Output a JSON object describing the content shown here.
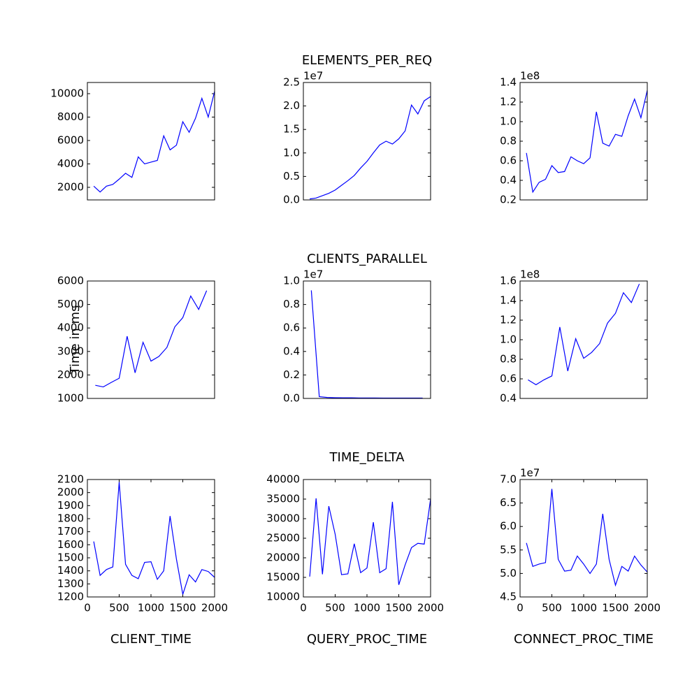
{
  "chart_data": [
    {
      "type": "line",
      "x": [
        100,
        200,
        300,
        400,
        500,
        600,
        700,
        800,
        900,
        1000,
        1100,
        1200,
        1300,
        1400,
        1500,
        1600,
        1700,
        1800,
        1900,
        2000
      ],
      "values": [
        2100,
        1600,
        2100,
        2250,
        2700,
        3200,
        2850,
        4600,
        4000,
        4150,
        4300,
        6400,
        5200,
        5600,
        7600,
        6700,
        7900,
        9600,
        8000,
        10200
      ],
      "color": "#0000ff",
      "xlim": [
        0,
        2000
      ],
      "ylim": [
        925,
        10955
      ],
      "yticks": [
        2000,
        4000,
        6000,
        8000,
        10000
      ]
    },
    {
      "type": "line",
      "title": "ELEMENTS_PER_REQ",
      "x": [
        100,
        200,
        300,
        400,
        500,
        600,
        700,
        800,
        900,
        1000,
        1100,
        1200,
        1300,
        1400,
        1500,
        1600,
        1700,
        1800,
        1900,
        2000
      ],
      "values": [
        0.02,
        0.04,
        0.09,
        0.14,
        0.21,
        0.31,
        0.41,
        0.52,
        0.68,
        0.82,
        1.0,
        1.17,
        1.25,
        1.19,
        1.3,
        1.47,
        2.02,
        1.83,
        2.11,
        2.2
      ],
      "color": "#0000ff",
      "xlim": [
        0,
        2000
      ],
      "ylim": [
        0,
        2.5
      ],
      "y_offset_label": "1e7",
      "yticks": [
        {
          "value": 0,
          "label": "0.0"
        },
        {
          "value": 0.5,
          "label": "0.5"
        },
        {
          "value": 1,
          "label": "1.0"
        },
        {
          "value": 1.5,
          "label": "1.5"
        },
        {
          "value": 2,
          "label": "2.0"
        },
        {
          "value": 2.5,
          "label": "2.5"
        }
      ]
    },
    {
      "type": "line",
      "x": [
        100,
        200,
        300,
        400,
        500,
        600,
        700,
        800,
        900,
        1000,
        1100,
        1200,
        1300,
        1400,
        1500,
        1600,
        1700,
        1800,
        1900,
        2000
      ],
      "values": [
        0.68,
        0.28,
        0.38,
        0.41,
        0.55,
        0.48,
        0.49,
        0.64,
        0.6,
        0.57,
        0.63,
        1.1,
        0.78,
        0.75,
        0.87,
        0.85,
        1.06,
        1.23,
        1.04,
        1.32
      ],
      "color": "#0000ff",
      "xlim": [
        0,
        2000
      ],
      "ylim": [
        0.2,
        1.4
      ],
      "y_offset_label": "1e8",
      "yticks": [
        {
          "value": 0.2,
          "label": "0.2"
        },
        {
          "value": 0.4,
          "label": "0.4"
        },
        {
          "value": 0.6,
          "label": "0.6"
        },
        {
          "value": 0.8,
          "label": "0.8"
        },
        {
          "value": 1,
          "label": "1.0"
        },
        {
          "value": 1.2,
          "label": "1.2"
        },
        {
          "value": 1.4,
          "label": "1.4"
        }
      ]
    },
    {
      "type": "line",
      "ylabel": "Time in ms",
      "x": [
        125,
        250,
        375,
        500,
        625,
        750,
        875,
        1000,
        1125,
        1250,
        1375,
        1500,
        1625,
        1750,
        1875
      ],
      "values": [
        1560,
        1490,
        1680,
        1860,
        3650,
        2090,
        3390,
        2590,
        2790,
        3170,
        4050,
        4440,
        5360,
        4790,
        5590
      ],
      "color": "#0000ff",
      "xlim": [
        0,
        2000
      ],
      "ylim": [
        1000,
        6000
      ],
      "yticks": [
        1000,
        2000,
        3000,
        4000,
        5000,
        6000
      ]
    },
    {
      "type": "line",
      "title": "CLIENTS_PARALLEL",
      "x": [
        125,
        250,
        375,
        500,
        625,
        750,
        875,
        1000,
        1125,
        1250,
        1375,
        1500,
        1625,
        1750,
        1875
      ],
      "values": [
        0.92,
        0.015,
        0.008,
        0.006,
        0.005,
        0.005,
        0.004,
        0.004,
        0.004,
        0.003,
        0.003,
        0.003,
        0.003,
        0.003,
        0.003
      ],
      "color": "#0000ff",
      "xlim": [
        0,
        2000
      ],
      "ylim": [
        0,
        1
      ],
      "y_offset_label": "1e7",
      "yticks": [
        {
          "value": 0,
          "label": "0.0"
        },
        {
          "value": 0.2,
          "label": "0.2"
        },
        {
          "value": 0.4,
          "label": "0.4"
        },
        {
          "value": 0.6,
          "label": "0.6"
        },
        {
          "value": 0.8,
          "label": "0.8"
        },
        {
          "value": 1,
          "label": "1.0"
        }
      ]
    },
    {
      "type": "line",
      "x": [
        125,
        250,
        375,
        500,
        625,
        750,
        875,
        1000,
        1125,
        1250,
        1375,
        1500,
        1625,
        1750,
        1875
      ],
      "values": [
        0.59,
        0.54,
        0.59,
        0.63,
        1.13,
        0.68,
        1.01,
        0.81,
        0.87,
        0.96,
        1.17,
        1.27,
        1.48,
        1.38,
        1.57
      ],
      "color": "#0000ff",
      "xlim": [
        0,
        2000
      ],
      "ylim": [
        0.4,
        1.6
      ],
      "y_offset_label": "1e8",
      "yticks": [
        {
          "value": 0.4,
          "label": "0.4"
        },
        {
          "value": 0.6,
          "label": "0.6"
        },
        {
          "value": 0.8,
          "label": "0.8"
        },
        {
          "value": 1,
          "label": "1.0"
        },
        {
          "value": 1.2,
          "label": "1.2"
        },
        {
          "value": 1.4,
          "label": "1.4"
        },
        {
          "value": 1.6,
          "label": "1.6"
        }
      ]
    },
    {
      "type": "line",
      "xlabel": "CLIENT_TIME",
      "x": [
        100,
        200,
        300,
        400,
        500,
        600,
        700,
        800,
        900,
        1000,
        1100,
        1200,
        1300,
        1400,
        1500,
        1600,
        1700,
        1800,
        1900,
        2000
      ],
      "values": [
        1625,
        1365,
        1410,
        1430,
        2080,
        1450,
        1365,
        1340,
        1465,
        1470,
        1335,
        1400,
        1820,
        1490,
        1220,
        1370,
        1315,
        1410,
        1395,
        1350
      ],
      "color": "#0000ff",
      "xlim": [
        0,
        2000
      ],
      "xticks": [
        0,
        500,
        1000,
        1500,
        2000
      ],
      "ylim": [
        1200,
        2100
      ],
      "yticks": [
        1200,
        1300,
        1400,
        1500,
        1600,
        1700,
        1800,
        1900,
        2000,
        2100
      ]
    },
    {
      "type": "line",
      "title": "TIME_DELTA",
      "xlabel": "QUERY_PROC_TIME",
      "x": [
        100,
        200,
        300,
        400,
        500,
        600,
        700,
        800,
        900,
        1000,
        1100,
        1200,
        1300,
        1400,
        1500,
        1600,
        1700,
        1800,
        1900,
        2000
      ],
      "values": [
        15200,
        35200,
        15800,
        33200,
        26000,
        15700,
        15900,
        23600,
        16200,
        17400,
        29100,
        16200,
        17200,
        34300,
        13100,
        18200,
        22600,
        23700,
        23500,
        35000
      ],
      "color": "#0000ff",
      "xlim": [
        0,
        2000
      ],
      "xticks": [
        0,
        500,
        1000,
        1500,
        2000
      ],
      "ylim": [
        10000,
        40000
      ],
      "yticks": [
        10000,
        15000,
        20000,
        25000,
        30000,
        35000,
        40000
      ]
    },
    {
      "type": "line",
      "xlabel": "CONNECT_PROC_TIME",
      "x": [
        100,
        200,
        300,
        400,
        500,
        600,
        700,
        800,
        900,
        1000,
        1100,
        1200,
        1300,
        1400,
        1500,
        1600,
        1700,
        1800,
        1900,
        2000
      ],
      "values": [
        5.65,
        5.15,
        5.2,
        5.23,
        6.8,
        5.3,
        5.05,
        5.07,
        5.37,
        5.2,
        5.0,
        5.2,
        6.27,
        5.3,
        4.75,
        5.15,
        5.05,
        5.37,
        5.18,
        5.03
      ],
      "color": "#0000ff",
      "xlim": [
        0,
        2000
      ],
      "xticks": [
        0,
        500,
        1000,
        1500,
        2000
      ],
      "ylim": [
        4.5,
        7.0
      ],
      "y_offset_label": "1e7",
      "yticks": [
        {
          "value": 4.5,
          "label": "4.5"
        },
        {
          "value": 5,
          "label": "5.0"
        },
        {
          "value": 5.5,
          "label": "5.5"
        },
        {
          "value": 6,
          "label": "6.0"
        },
        {
          "value": 6.5,
          "label": "6.5"
        },
        {
          "value": 7,
          "label": "7.0"
        }
      ]
    }
  ]
}
